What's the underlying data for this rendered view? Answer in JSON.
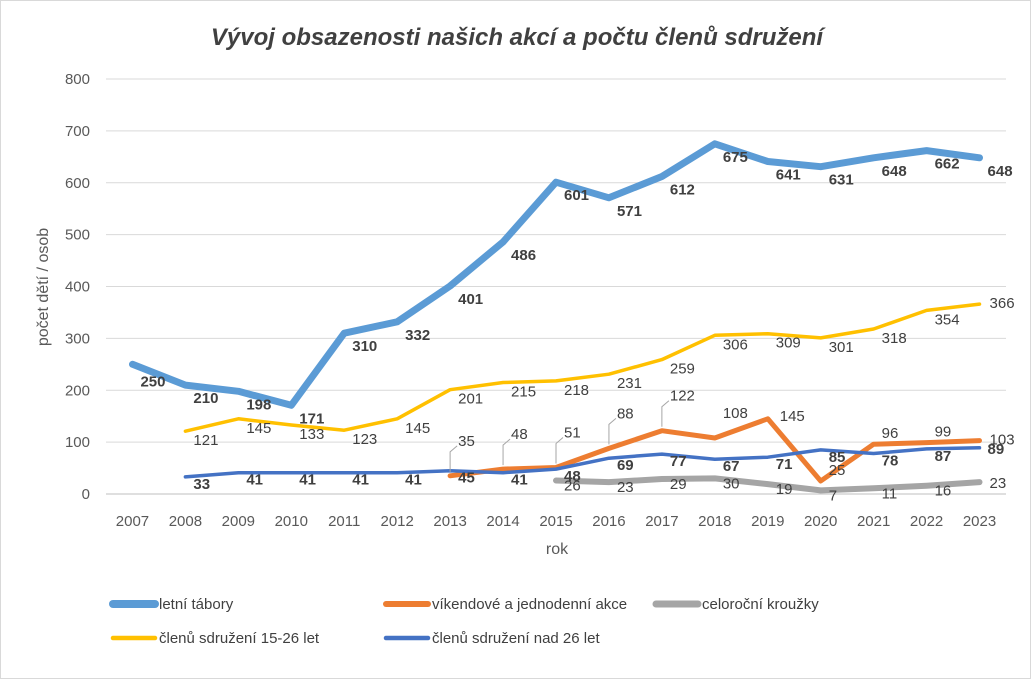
{
  "chart_data": {
    "type": "line",
    "title": "Vývoj obsazenosti našich akcí a počtu členů sdružení",
    "xlabel": "rok",
    "ylabel": "počet dětí / osob",
    "ylim": [
      0,
      800
    ],
    "yticks": [
      0,
      100,
      200,
      300,
      400,
      500,
      600,
      700,
      800
    ],
    "grid": true,
    "legend_position": "bottom",
    "categories": [
      "2007",
      "2008",
      "2009",
      "2010",
      "2011",
      "2012",
      "2013",
      "2014",
      "2015",
      "2016",
      "2017",
      "2018",
      "2019",
      "2020",
      "2021",
      "2022",
      "2023"
    ],
    "series": [
      {
        "name": "letní tábory",
        "color": "#5B9BD5",
        "values": [
          250,
          210,
          198,
          171,
          310,
          332,
          401,
          486,
          601,
          571,
          612,
          675,
          641,
          631,
          648,
          662,
          648
        ]
      },
      {
        "name": "víkendové a jednodenní akce",
        "color": "#ED7D31",
        "values": [
          null,
          null,
          null,
          null,
          null,
          null,
          35,
          48,
          51,
          88,
          122,
          108,
          145,
          25,
          96,
          99,
          103
        ]
      },
      {
        "name": "celoroční kroužky",
        "color": "#A5A5A5",
        "values": [
          null,
          null,
          null,
          null,
          null,
          null,
          null,
          null,
          26,
          23,
          29,
          30,
          19,
          7,
          11,
          16,
          23
        ]
      },
      {
        "name": "členů sdružení 15-26 let",
        "color": "#FFC000",
        "values": [
          null,
          121,
          145,
          133,
          123,
          145,
          201,
          215,
          218,
          231,
          259,
          306,
          309,
          301,
          318,
          354,
          366
        ]
      },
      {
        "name": "členů sdružení nad 26 let",
        "color": "#4472C4",
        "values": [
          null,
          33,
          41,
          41,
          41,
          41,
          45,
          41,
          48,
          69,
          77,
          67,
          71,
          85,
          78,
          87,
          89
        ]
      }
    ]
  }
}
